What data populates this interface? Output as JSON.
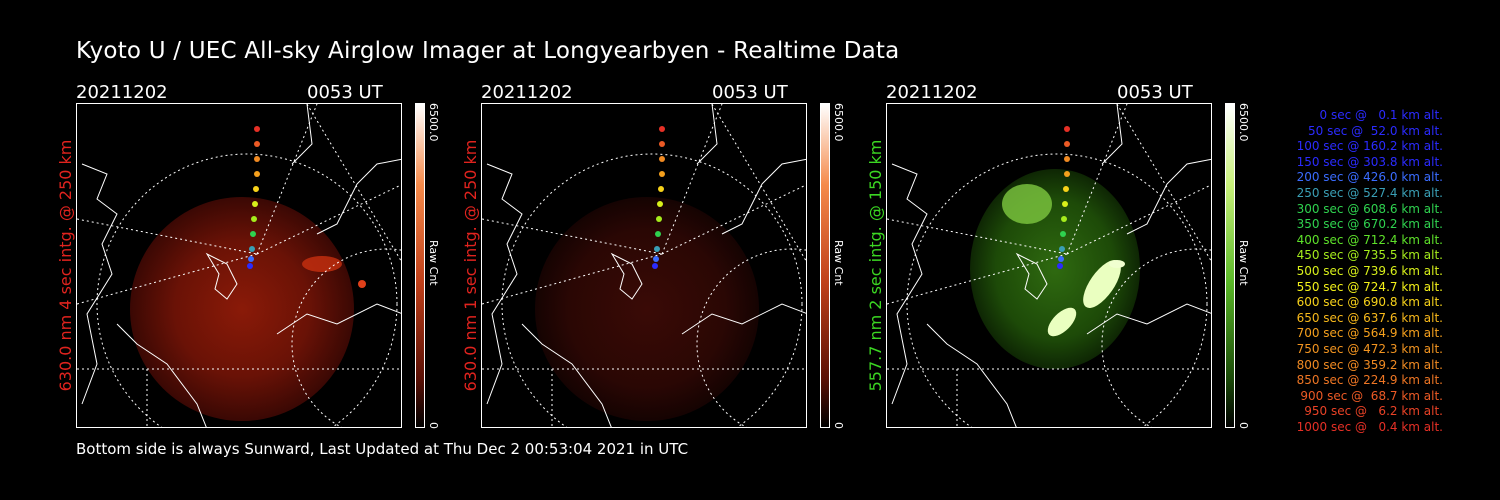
{
  "title": "Kyoto U / UEC All-sky Airglow Imager at Longyearbyen - Realtime Data",
  "footer": "Bottom side is always Sunward, Last Updated at Thu Dec  2 00:53:04 2021 in UTC",
  "panels": [
    {
      "date": "20211202",
      "time": "0053 UT",
      "side_label": "630.0 nm 4 sec intg. @ 250 km",
      "label_color": "#e0231e",
      "cbar_max": "6500.0",
      "cbar_min": "0",
      "cbar_unit": "Raw Cnt"
    },
    {
      "date": "20211202",
      "time": "0053 UT",
      "side_label": "630.0 nm 1 sec intg. @ 250 km",
      "label_color": "#e0231e",
      "cbar_max": "6500.0",
      "cbar_min": "0",
      "cbar_unit": "Raw Cnt"
    },
    {
      "date": "20211202",
      "time": "0053 UT",
      "side_label": "557.7 nm 2 sec intg. @ 150 km",
      "label_color": "#3bd622",
      "cbar_max": "6500.0",
      "cbar_min": "0",
      "cbar_unit": "Raw Cnt"
    }
  ],
  "legend": [
    {
      "text": "   0 sec @   0.1 km alt.",
      "color": "#2b2bff"
    },
    {
      "text": "  50 sec @  52.0 km alt.",
      "color": "#2b2bff"
    },
    {
      "text": " 100 sec @ 160.2 km alt.",
      "color": "#2b2bff"
    },
    {
      "text": " 150 sec @ 303.8 km alt.",
      "color": "#2b2bff"
    },
    {
      "text": " 200 sec @ 426.0 km alt.",
      "color": "#3a6cff"
    },
    {
      "text": " 250 sec @ 527.4 km alt.",
      "color": "#3a9fb5"
    },
    {
      "text": " 300 sec @ 608.6 km alt.",
      "color": "#2fd24f"
    },
    {
      "text": " 350 sec @ 670.2 km alt.",
      "color": "#2fd24f"
    },
    {
      "text": " 400 sec @ 712.4 km alt.",
      "color": "#5ee12a"
    },
    {
      "text": " 450 sec @ 735.5 km alt.",
      "color": "#a5ec1c"
    },
    {
      "text": " 500 sec @ 739.6 km alt.",
      "color": "#d8f01a"
    },
    {
      "text": " 550 sec @ 724.7 km alt.",
      "color": "#f2f019"
    },
    {
      "text": " 600 sec @ 690.8 km alt.",
      "color": "#f7d21a"
    },
    {
      "text": " 650 sec @ 637.6 km alt.",
      "color": "#f7b81b"
    },
    {
      "text": " 700 sec @ 564.9 km alt.",
      "color": "#f5a01d"
    },
    {
      "text": " 750 sec @ 472.3 km alt.",
      "color": "#f29420"
    },
    {
      "text": " 800 sec @ 359.2 km alt.",
      "color": "#f08a22"
    },
    {
      "text": " 850 sec @ 224.9 km alt.",
      "color": "#ee7624"
    },
    {
      "text": " 900 sec @  68.7 km alt.",
      "color": "#ec5a25"
    },
    {
      "text": " 950 sec @   6.2 km alt.",
      "color": "#e94226"
    },
    {
      "text": "1000 sec @   0.4 km alt.",
      "color": "#e63026"
    }
  ],
  "colors": {
    "background": "#000000",
    "text": "#ffffff",
    "red_label": "#e0231e",
    "green_label": "#3bd622"
  }
}
